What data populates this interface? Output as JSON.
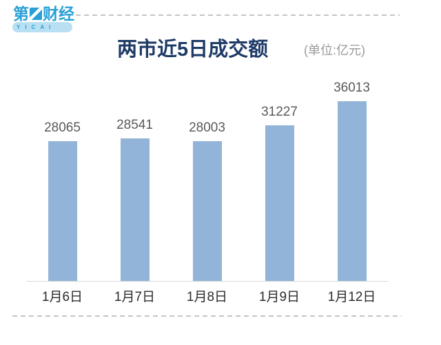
{
  "logo": {
    "brand_prefix": "第",
    "brand_suffix": "财经",
    "brand_sub": "YICAI"
  },
  "header": {
    "title": "两市近5日成交额",
    "unit": "(单位:亿元)"
  },
  "chart_data": {
    "type": "bar",
    "title": "两市近5日成交额",
    "unit": "亿元",
    "categories": [
      "1月6日",
      "1月7日",
      "1月8日",
      "1月9日",
      "1月12日"
    ],
    "values": [
      28065,
      28541,
      28003,
      31227,
      36013
    ],
    "ylim": [
      0,
      36013
    ],
    "grid": false,
    "legend": "none",
    "value_labels_shown": true,
    "bar_color": "#92b4d8"
  },
  "colors": {
    "bar": "#92b4d8",
    "title": "#1e3a66",
    "unit_text": "#999999",
    "value_label": "#595959",
    "axis_label": "#2b2b2b",
    "axis_line": "#d8d8d8",
    "dashed_line": "#c4c4c4",
    "logo_blue": "#2aa0d5",
    "logo_band": "#b9e0f2"
  }
}
